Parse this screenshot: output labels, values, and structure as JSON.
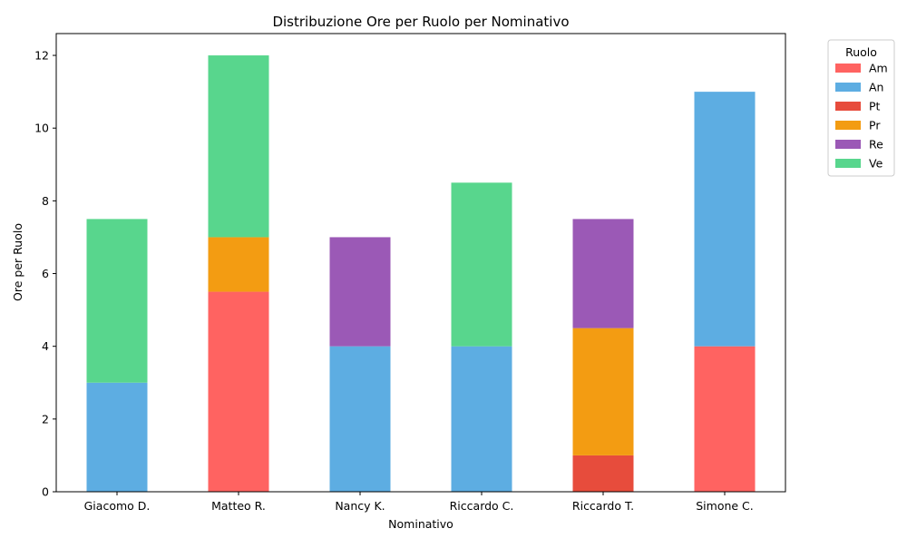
{
  "chart_data": {
    "type": "bar",
    "stacked": true,
    "title": "Distribuzione Ore per Ruolo per Nominativo",
    "xlabel": "Nominativo",
    "ylabel": "Ore per Ruolo",
    "ylim": [
      0,
      12.6
    ],
    "yticks": [
      0,
      2,
      4,
      6,
      8,
      10,
      12
    ],
    "yticklabels": [
      "0",
      "2",
      "4",
      "6",
      "8",
      "10",
      "12"
    ],
    "grid": false,
    "legend_title": "Ruolo",
    "legend_position": "outside-top-right",
    "categories": [
      "Giacomo D.",
      "Matteo R.",
      "Nancy K.",
      "Riccardo C.",
      "Riccardo T.",
      "Simone C."
    ],
    "series": [
      {
        "name": "Am",
        "color": "#ff6361",
        "values": [
          0,
          5.5,
          0,
          0,
          0,
          4
        ]
      },
      {
        "name": "An",
        "color": "#5dade2",
        "values": [
          3,
          0,
          4,
          4,
          0,
          7
        ]
      },
      {
        "name": "Pt",
        "color": "#e74c3c",
        "values": [
          0,
          0,
          0,
          0,
          1,
          0
        ]
      },
      {
        "name": "Pr",
        "color": "#f39c12",
        "values": [
          0,
          1.5,
          0,
          0,
          3.5,
          0
        ]
      },
      {
        "name": "Re",
        "color": "#9b59b6",
        "values": [
          0,
          0,
          3,
          0,
          3,
          0
        ]
      },
      {
        "name": "Ve",
        "color": "#58d68d",
        "values": [
          4.5,
          5,
          0,
          4.5,
          0,
          0
        ]
      }
    ]
  }
}
